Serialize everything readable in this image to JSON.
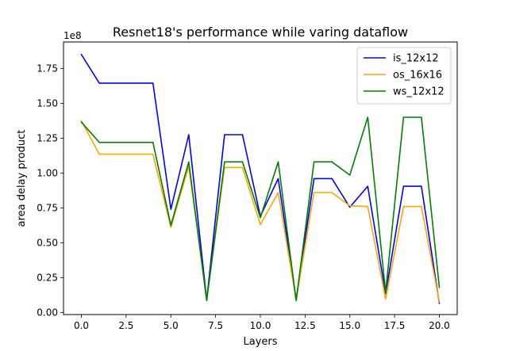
{
  "chart_data": {
    "type": "line",
    "title": "Resnet18's performance while varing dataflow",
    "xlabel": "Layers",
    "ylabel": "area delay product",
    "y_offset_label": "1e8",
    "y_scale": 100000000,
    "xlim": [
      -1,
      21
    ],
    "ylim": [
      -0.015,
      1.94
    ],
    "x_ticks": [
      0,
      2.5,
      5,
      7.5,
      10,
      12.5,
      15,
      17.5,
      20
    ],
    "x_tick_labels": [
      "0.0",
      "2.5",
      "5.0",
      "7.5",
      "10.0",
      "12.5",
      "15.0",
      "17.5",
      "20.0"
    ],
    "y_ticks": [
      0,
      0.25,
      0.5,
      0.75,
      1.0,
      1.25,
      1.5,
      1.75
    ],
    "y_tick_labels": [
      "0.00",
      "0.25",
      "0.50",
      "0.75",
      "1.00",
      "1.25",
      "1.50",
      "1.75"
    ],
    "grid": false,
    "legend_position": "top-right",
    "x": [
      0,
      1,
      2,
      3,
      4,
      5,
      6,
      7,
      8,
      9,
      10,
      11,
      12,
      13,
      14,
      15,
      16,
      17,
      18,
      19,
      20
    ],
    "series": [
      {
        "name": "is_12x12",
        "color": "#0000ff",
        "values": [
          1.85,
          1.645,
          1.645,
          1.645,
          1.645,
          0.74,
          1.275,
          0.09,
          1.275,
          1.275,
          0.69,
          0.96,
          0.09,
          0.96,
          0.96,
          0.755,
          0.905,
          0.135,
          0.905,
          0.905,
          0.065
        ]
      },
      {
        "name": "os_16x16",
        "color": "#ffa500",
        "values": [
          1.375,
          1.135,
          1.135,
          1.135,
          1.135,
          0.61,
          1.05,
          0.09,
          1.04,
          1.04,
          0.63,
          0.86,
          0.09,
          0.86,
          0.86,
          0.765,
          0.76,
          0.095,
          0.76,
          0.76,
          0.075
        ]
      },
      {
        "name": "ws_12x12",
        "color": "#008000",
        "values": [
          1.365,
          1.22,
          1.22,
          1.22,
          1.22,
          0.625,
          1.08,
          0.085,
          1.08,
          1.08,
          0.68,
          1.08,
          0.085,
          1.08,
          1.08,
          0.985,
          1.4,
          0.145,
          1.4,
          1.4,
          0.18
        ]
      }
    ]
  }
}
